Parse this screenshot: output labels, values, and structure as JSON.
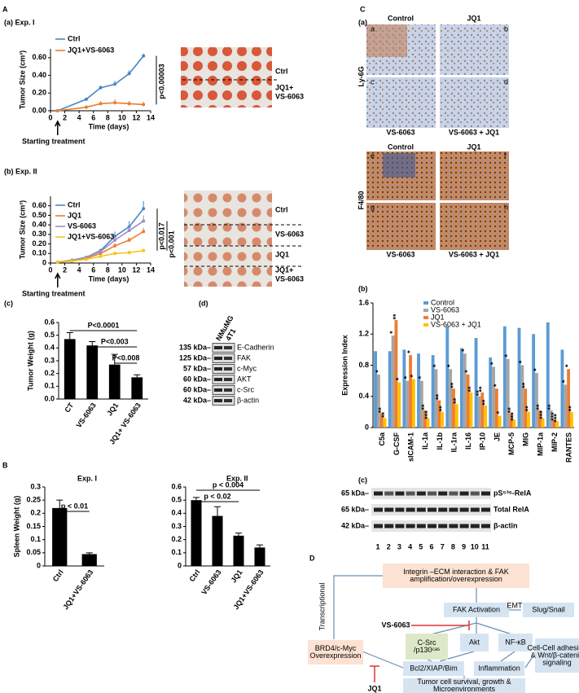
{
  "panel_labels": [
    "A",
    "B",
    "C",
    "D"
  ],
  "chart_data": [
    {
      "type": "line",
      "title": "(a) Exp. I",
      "x_label": "Time  (days)",
      "y_label": "Tumor Size (cm³)",
      "note": "Starting treatment",
      "x": [
        1,
        5,
        7,
        9,
        11,
        13
      ],
      "xlim": [
        0,
        14
      ],
      "xticks": [
        0,
        2,
        4,
        6,
        8,
        10,
        12,
        14
      ],
      "ylim": [
        0,
        0.7
      ],
      "yticks": [
        {
          "value": 0,
          "label": "0.00"
        },
        {
          "value": 0.2,
          "label": "0.20"
        },
        {
          "value": 0.4,
          "label": "0.40"
        },
        {
          "value": 0.6,
          "label": "0.60"
        }
      ],
      "series": [
        {
          "name": "Ctrl",
          "color": "#4a86c8",
          "values": [
            0,
            0.13,
            0.26,
            0.3,
            0.42,
            0.62
          ],
          "errors": [
            0,
            0.015,
            0.025,
            0.04,
            0.04,
            0.025
          ]
        },
        {
          "name": "JQ1+VS-6063",
          "color": "#ed7d31",
          "values": [
            0,
            0.04,
            0.08,
            0.09,
            0.08,
            0.07
          ],
          "errors": [
            0,
            0.02,
            0.03,
            0.04,
            0.03,
            0.03
          ]
        }
      ],
      "annotations": [
        "p<0.00003"
      ]
    },
    {
      "type": "line",
      "title": "(b) Exp. II",
      "x_label": "Time  (days)",
      "y_label": "Tumor Size (cm³)",
      "note": "Starting treatment",
      "x": [
        1,
        3,
        5,
        7,
        9,
        11,
        13
      ],
      "xlim": [
        0,
        14
      ],
      "xticks": [
        0,
        2,
        4,
        6,
        8,
        10,
        12,
        14
      ],
      "ylim": [
        0,
        0.7
      ],
      "yticks": [
        0,
        {
          "value": 0.1,
          "label": "0.10"
        },
        {
          "value": 0.2,
          "label": "0.20"
        },
        {
          "value": 0.3,
          "label": "0.30"
        },
        {
          "value": 0.4,
          "label": "0.40"
        },
        {
          "value": 0.5,
          "label": "0.50"
        },
        {
          "value": 0.6,
          "label": "0.60"
        }
      ],
      "series": [
        {
          "name": "Ctrl",
          "color": "#4a86c8",
          "values": [
            0.01,
            0.03,
            0.06,
            0.13,
            0.28,
            0.38,
            0.57
          ],
          "errors": [
            0,
            0.01,
            0.01,
            0.02,
            0.05,
            0.06,
            0.08
          ]
        },
        {
          "name": "JQ1",
          "color": "#ed7d31",
          "values": [
            0.01,
            0.02,
            0.05,
            0.1,
            0.18,
            0.24,
            0.33
          ],
          "errors": [
            0,
            0.01,
            0.01,
            0.02,
            0.03,
            0.03,
            0.04
          ]
        },
        {
          "name": "VS-6063",
          "color": "#9c8fc0",
          "values": [
            0.01,
            0.03,
            0.06,
            0.12,
            0.24,
            0.34,
            0.44
          ],
          "errors": [
            0,
            0.01,
            0.01,
            0.02,
            0.04,
            0.05,
            0.06
          ]
        },
        {
          "name": "JQ1+VS-6063",
          "color": "#f5c518",
          "values": [
            0.01,
            0.02,
            0.04,
            0.07,
            0.1,
            0.11,
            0.13
          ],
          "errors": [
            0,
            0.01,
            0.01,
            0.01,
            0.02,
            0.02,
            0.02
          ]
        }
      ],
      "annotations": [
        "p<0.017",
        "p<0.001"
      ]
    },
    {
      "type": "bar",
      "title": "(c)",
      "y_label": "Tumor Weight (g)",
      "categories": [
        "CT",
        "VS-6063",
        "JQ1",
        "JQ1+ VS-6063"
      ],
      "values": [
        0.47,
        0.42,
        0.27,
        0.17
      ],
      "errors": [
        0.05,
        0.03,
        0.08,
        0.02
      ],
      "color": "#000000",
      "ylim": [
        0,
        0.6
      ],
      "yticks": [
        {
          "value": 0,
          "label": "0.0"
        },
        0.1,
        0.2,
        0.3,
        0.4,
        0.5,
        0.6
      ],
      "annotations": [
        "P<0.0001",
        "P<0.003",
        "P<0.008"
      ]
    },
    {
      "type": "bar",
      "title": "Exp. I",
      "y_label": "Spleen Weight (g)",
      "categories": [
        "Ctrl",
        "JQ1+VS-6063"
      ],
      "values": [
        0.22,
        0.045
      ],
      "errors": [
        0.03,
        0.005
      ],
      "color": "#000000",
      "ylim": [
        0,
        0.3
      ],
      "yticks": [
        0,
        0.05,
        0.1,
        0.15,
        0.2,
        0.25,
        0.3
      ],
      "annotations": [
        "p < 0.01"
      ]
    },
    {
      "type": "bar",
      "title": "Exp. II",
      "categories": [
        "Ctrl",
        "VS-6063",
        "JQ1",
        "JQ1+VS-6063"
      ],
      "values": [
        0.5,
        0.38,
        0.23,
        0.14
      ],
      "errors": [
        0.02,
        0.07,
        0.02,
        0.02
      ],
      "color": "#000000",
      "ylim": [
        0,
        0.6
      ],
      "yticks": [
        0,
        0.1,
        0.2,
        0.3,
        0.4,
        0.5,
        0.6
      ],
      "annotations": [
        "p < 0.004",
        "p < 0.02"
      ]
    },
    {
      "type": "bar",
      "title": "(b)",
      "y_label": "Expression Index",
      "categories": [
        "C5a",
        "G-CSF",
        "sICAM-1",
        "IL-1a",
        "IL-1b",
        "IL-1ra",
        "IL-16",
        "IP-10",
        "JE",
        "MCP-5",
        "MIG",
        "MIP-1a",
        "MIP-2",
        "RANTES"
      ],
      "ylim": [
        0,
        1.6
      ],
      "yticks": [
        0,
        0.4,
        0.8,
        1.2,
        1.6
      ],
      "series": [
        {
          "name": "Control",
          "color": "#5b9bd5",
          "values": [
            0.98,
            0.98,
            1.0,
            0.95,
            0.93,
            1.3,
            1.02,
            1.15,
            0.9,
            1.3,
            1.28,
            1.2,
            1.35,
            1.0
          ]
        },
        {
          "name": "VS-6063",
          "color": "#a5a5a5",
          "values": [
            0.68,
            1.18,
            0.6,
            0.6,
            0.75,
            0.75,
            0.95,
            0.4,
            0.78,
            0.88,
            0.8,
            0.7,
            0.22,
            0.55
          ],
          "stars": [
            "*",
            "*",
            "*",
            "*",
            "*",
            "*",
            "*",
            "**",
            "*",
            "*",
            "*",
            "*",
            "**",
            "*"
          ]
        },
        {
          "name": "JQ1",
          "color": "#ed7d31",
          "values": [
            0.18,
            1.38,
            0.93,
            0.22,
            0.35,
            0.5,
            0.68,
            0.45,
            0.5,
            0.18,
            0.5,
            0.22,
            0.1,
            0.75
          ],
          "stars": [
            "**",
            "**",
            "*",
            "**",
            "**",
            "**",
            "*",
            "**",
            "*",
            "**",
            "**",
            "**",
            "***",
            "*"
          ]
        },
        {
          "name": "VS-6063  + JQ1",
          "color": "#ffc000",
          "values": [
            0.12,
            0.58,
            0.62,
            0.12,
            0.2,
            0.3,
            0.45,
            0.28,
            0.15,
            0.1,
            0.2,
            0.12,
            0.08,
            0.2
          ],
          "stars": [
            "**",
            "*",
            "*",
            "***",
            "**",
            "**",
            "**",
            "**",
            "*",
            "***",
            "**",
            "***",
            "***",
            "**"
          ]
        }
      ]
    }
  ],
  "exp1_photo": [
    "Ctrl",
    "JQ1+",
    "VS-6063"
  ],
  "exp2_photo": [
    "Ctrl",
    "VS-6063",
    "JQ1",
    "JQ1+",
    "VS-6063"
  ],
  "blot_d": {
    "title": "(d)",
    "lanes": [
      "NMuMG",
      "4T1"
    ],
    "rows": [
      {
        "kda": "135 kDa–",
        "protein": "E-Cadherin"
      },
      {
        "kda": "125 kDa–",
        "protein": "FAK"
      },
      {
        "kda": "57 kDa–",
        "protein": "c-Myc"
      },
      {
        "kda": "60 kDa–",
        "protein": "AKT"
      },
      {
        "kda": "60 kDa–",
        "protein": "c-Src"
      },
      {
        "kda": "42 kDa–",
        "protein": "β-actin"
      }
    ]
  },
  "ihc": {
    "title": "(a)",
    "rows": [
      "Ly-6G",
      "F4/80"
    ],
    "top_cols": [
      "Control",
      "JQ1"
    ],
    "bottom_cols": [
      "VS-6063",
      "VS-6063 + JQ1"
    ],
    "letters": [
      "a",
      "b",
      "c",
      "d",
      "e",
      "f",
      "g",
      "h"
    ]
  },
  "blot_c": {
    "title": "(c)",
    "rows": [
      {
        "kda": "65 kDa–",
        "protein": "pS⁵³⁶-RelA"
      },
      {
        "kda": "65 kDa–",
        "protein": "Total RelA"
      },
      {
        "kda": "42 kDa–",
        "protein": "β-actin"
      }
    ],
    "lanes": [
      1,
      2,
      3,
      4,
      5,
      6,
      7,
      8,
      9,
      10,
      11
    ]
  },
  "diagram": {
    "nodes": [
      {
        "lines": [
          "Integrin –ECM interaction & FAK",
          "amplification/overexpression"
        ]
      },
      {
        "lines": [
          "FAK Activation"
        ]
      },
      {
        "lines": [
          "EMT"
        ]
      },
      {
        "lines": [
          "Slug/Snail"
        ]
      },
      {
        "lines": [
          "VS-6063"
        ]
      },
      {
        "lines": [
          "Transcriptional"
        ]
      },
      {
        "lines": [
          "C-Src",
          "/p130ᶜᵃˢ"
        ]
      },
      {
        "lines": [
          "Akt"
        ]
      },
      {
        "lines": [
          "NF-κB"
        ]
      },
      {
        "lines": [
          "BRD4/c-Myc",
          "Overexpression"
        ]
      },
      {
        "lines": [
          "Cell-Cell adhesion",
          "& Wnt/β-catenin",
          "signaling"
        ]
      },
      {
        "lines": [
          "Bcl2/XIAP/Bim"
        ]
      },
      {
        "lines": [
          "Inflammation"
        ]
      },
      {
        "lines": [
          "JQ1"
        ]
      },
      {
        "lines": [
          "Tumor cell survival, growth &",
          "Microenvironments"
        ]
      }
    ]
  }
}
